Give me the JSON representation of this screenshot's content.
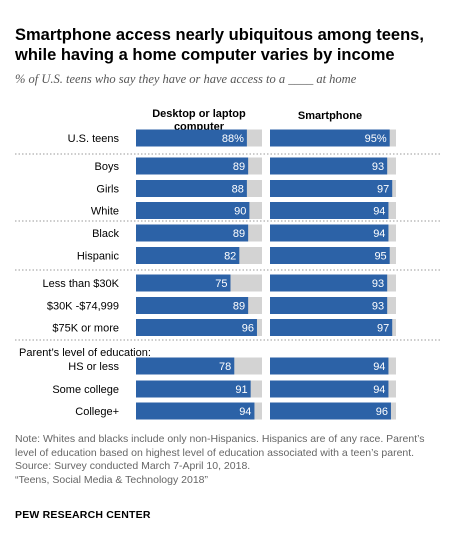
{
  "title": "Smartphone access nearly ubiquitous among teens, while having a home computer varies by income",
  "subtitle": "% of U.S. teens who say they have or have access to a ____ at home",
  "note_lines": [
    "Note: Whites and blacks include only non-Hispanics. Hispanics are of any race. Parent’s",
    "level of education based on highest level of education associated with a teen’s parent.",
    "Source: Survey conducted March 7-April 10, 2018.",
    "“Teens, Social Media & Technology 2018”"
  ],
  "brand": "PEW RESEARCH CENTER",
  "colors": {
    "bar": "#2c62a7",
    "track": "#d3d3d3",
    "value_text": "#ffffff",
    "separator": "#999999"
  },
  "chart_data": {
    "type": "bar",
    "orientation": "horizontal",
    "xlim": [
      0,
      100
    ],
    "section_label": "Parent’s level of education:",
    "categories": [
      "U.S. teens",
      "Boys",
      "Girls",
      "White",
      "Black",
      "Hispanic",
      "Less than $30K",
      "$30K -$74,999",
      "$75K or more",
      "HS or less",
      "Some college",
      "College+"
    ],
    "value_labels_first_row_suffix": "%",
    "series": [
      {
        "name": "Desktop or laptop computer",
        "values": [
          88,
          89,
          88,
          90,
          89,
          82,
          75,
          89,
          96,
          78,
          91,
          94
        ]
      },
      {
        "name": "Smartphone",
        "values": [
          95,
          93,
          97,
          94,
          94,
          95,
          93,
          93,
          97,
          94,
          94,
          96
        ]
      }
    ]
  }
}
